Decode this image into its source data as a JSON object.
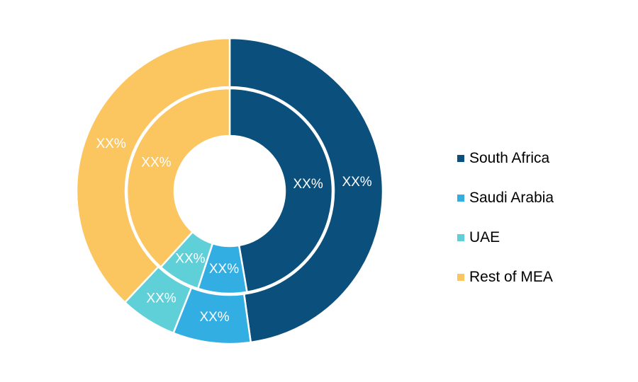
{
  "chart_data": {
    "type": "pie",
    "categories": [
      "South Africa",
      "Saudi Arabia",
      "UAE",
      "Rest of MEA"
    ],
    "colors": [
      "#0b4f7d",
      "#33aee3",
      "#5fd0d8",
      "#fbc560"
    ],
    "series": [
      {
        "ring": "outer",
        "values": [
          47.8,
          8.2,
          6.0,
          38.0
        ],
        "labels": [
          "XX%",
          "XX%",
          "XX%",
          "XX%"
        ]
      },
      {
        "ring": "inner",
        "values": [
          47.3,
          7.7,
          6.7,
          38.3
        ],
        "labels": [
          "XX%",
          "XX%",
          "XX%",
          "XX%"
        ]
      }
    ]
  },
  "legend": {
    "position": "right",
    "items": [
      {
        "label": "South Africa",
        "color": "#0b4f7d"
      },
      {
        "label": "Saudi Arabia",
        "color": "#33aee3"
      },
      {
        "label": "UAE",
        "color": "#5fd0d8"
      },
      {
        "label": "Rest of MEA",
        "color": "#fbc560"
      }
    ]
  }
}
